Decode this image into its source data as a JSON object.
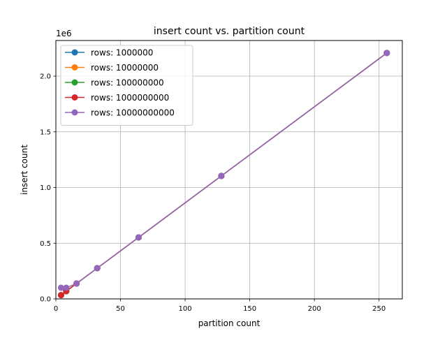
{
  "chart_data": {
    "type": "line",
    "title": "insert count vs. partition count",
    "xlabel": "partition count",
    "ylabel": "insert count",
    "y_offset_label": "1e6",
    "xlim": [
      0,
      268
    ],
    "ylim": [
      0,
      2320000
    ],
    "xticks": [
      0,
      50,
      100,
      150,
      200,
      250
    ],
    "yticks": [
      0,
      500000,
      1000000,
      1500000,
      2000000
    ],
    "ytick_labels": [
      "0.0",
      "0.5",
      "1.0",
      "1.5",
      "2.0"
    ],
    "grid": true,
    "legend_position": "top-left",
    "series": [
      {
        "name": "rows: 1000000",
        "color": "#1f77b4",
        "x": [
          4,
          8,
          16,
          32,
          64,
          128,
          256
        ],
        "y": [
          34000,
          69000,
          138000,
          276000,
          552000,
          1104000,
          2208000
        ]
      },
      {
        "name": "rows: 10000000",
        "color": "#ff7f0e",
        "x": [
          4,
          8,
          16,
          32,
          64,
          128,
          256
        ],
        "y": [
          34000,
          69000,
          138000,
          276000,
          552000,
          1104000,
          2208000
        ]
      },
      {
        "name": "rows: 100000000",
        "color": "#2ca02c",
        "x": [
          4,
          8,
          16,
          32,
          64,
          128,
          256
        ],
        "y": [
          34000,
          69000,
          138000,
          276000,
          552000,
          1104000,
          2208000
        ]
      },
      {
        "name": "rows: 1000000000",
        "color": "#d62728",
        "x": [
          4,
          8,
          16,
          32,
          64,
          128,
          256
        ],
        "y": [
          34000,
          69000,
          138000,
          276000,
          552000,
          1104000,
          2208000
        ]
      },
      {
        "name": "rows: 10000000000",
        "color": "#9467bd",
        "x": [
          4,
          8,
          16,
          32,
          64,
          128,
          256
        ],
        "y": [
          100000,
          100000,
          138000,
          276000,
          552000,
          1104000,
          2208000
        ]
      }
    ]
  }
}
